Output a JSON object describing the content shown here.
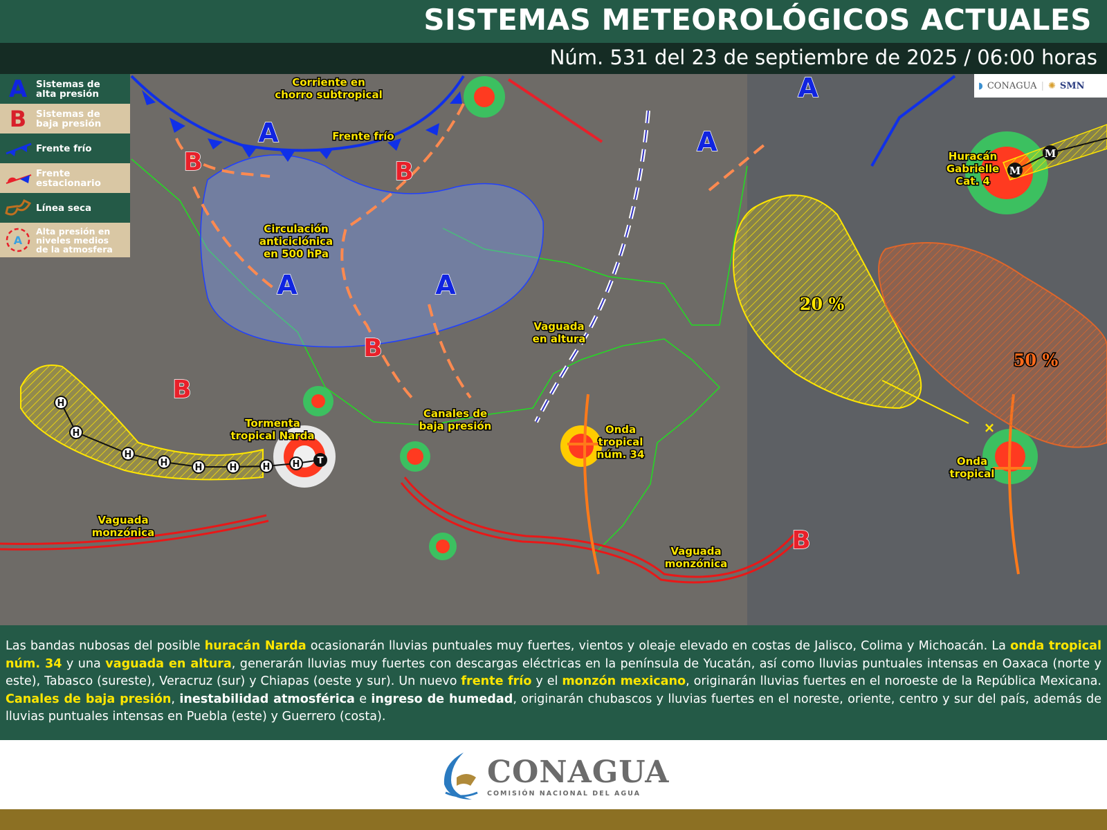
{
  "header": {
    "title": "SISTEMAS METEOROLÓGICOS ACTUALES",
    "subtitle": "Núm. 531 del 23 de septiembre de 2025 / 06:00 horas"
  },
  "legend": [
    {
      "icon": "high-pressure-A",
      "lines": [
        "Sistemas de",
        "alta presión"
      ]
    },
    {
      "icon": "low-pressure-B",
      "lines": [
        "Sistemas de",
        "baja presión"
      ]
    },
    {
      "icon": "cold-front",
      "lines": [
        "Frente frío"
      ]
    },
    {
      "icon": "stationary-front",
      "lines": [
        "Frente",
        "estacionario"
      ]
    },
    {
      "icon": "dry-line",
      "lines": [
        "Línea seca"
      ]
    },
    {
      "icon": "mid-level-high",
      "lines": [
        "Alta presión en",
        "niveles medios",
        "de la atmosfera"
      ]
    }
  ],
  "legend_symbols": {
    "A": "A",
    "B": "B"
  },
  "top_logo": {
    "left": "CONAGUA",
    "right": "SMN"
  },
  "map": {
    "labels": {
      "jet": [
        "Corriente en",
        "chorro subtropical"
      ],
      "cold_front": [
        "Frente frío"
      ],
      "anticyclone": [
        "Circulación",
        "anticiclónica",
        "en 500 hPa"
      ],
      "upper_trough": [
        "Vaguada",
        "en altura"
      ],
      "low_channels": [
        "Canales de",
        "baja presión"
      ],
      "narda": [
        "Tormenta",
        "tropical Narda"
      ],
      "tropical_wave_34": [
        "Onda",
        "tropical",
        "núm. 34"
      ],
      "monsoon_trough_w": [
        "Vaguada",
        "monzónica"
      ],
      "monsoon_trough_e": [
        "Vaguada",
        "monzónica"
      ],
      "gabrielle": [
        "Huracán",
        "Gabrielle",
        "Cat. 4"
      ],
      "tropical_wave_e": [
        "Onda",
        "tropical"
      ]
    },
    "high_pressure_label": "A",
    "low_pressure_label": "B",
    "probabilities": [
      {
        "value": "20 %",
        "color": "#ffe600"
      },
      {
        "value": "50 %",
        "color": "#ff6a1a"
      }
    ],
    "track_markers": {
      "hurricane": "H",
      "storm": "T",
      "major": "M"
    },
    "colors": {
      "high": "#1024e0",
      "low": "#e8202a",
      "cold_front": "#1030e8",
      "monsoon": "#e81818",
      "wave": "#ff7a1a",
      "trough": "#ff8a50",
      "probability_20": "#ffe600",
      "probability_50": "#e0662a"
    }
  },
  "description": [
    {
      "t": "Las bandas nubosas del posible ",
      "s": ""
    },
    {
      "t": "huracán Narda",
      "s": "hl"
    },
    {
      "t": " ocasionarán lluvias puntuales muy fuertes, vientos y oleaje elevado en costas de Jalisco, Colima y Michoacán. La ",
      "s": ""
    },
    {
      "t": "onda tropical núm. 34",
      "s": "hl"
    },
    {
      "t": " y una ",
      "s": ""
    },
    {
      "t": "vaguada en altura",
      "s": "hl"
    },
    {
      "t": ", generarán lluvias muy fuertes con descargas eléctricas en la península de Yucatán, así como lluvias puntuales intensas en Oaxaca (norte y este), Tabasco (sureste), Veracruz (sur) y Chiapas (oeste y sur). Un nuevo ",
      "s": ""
    },
    {
      "t": "frente frío",
      "s": "hl"
    },
    {
      "t": " y el ",
      "s": ""
    },
    {
      "t": "monzón mexicano",
      "s": "hl"
    },
    {
      "t": ", originarán lluvias fuertes en el noroeste de la República Mexicana. ",
      "s": ""
    },
    {
      "t": "Canales de baja presión",
      "s": "hl"
    },
    {
      "t": ", ",
      "s": ""
    },
    {
      "t": "inestabilidad atmosférica",
      "s": "b"
    },
    {
      "t": " e ",
      "s": ""
    },
    {
      "t": "ingreso de humedad",
      "s": "b"
    },
    {
      "t": ", originarán chubascos y lluvias fuertes en el noreste, oriente, centro y sur del país, además de lluvias puntuales intensas en Puebla (este) y Guerrero (costa).",
      "s": ""
    }
  ],
  "footer": {
    "name": "CONAGUA",
    "subtitle": "COMISIÓN NACIONAL DEL AGUA"
  }
}
